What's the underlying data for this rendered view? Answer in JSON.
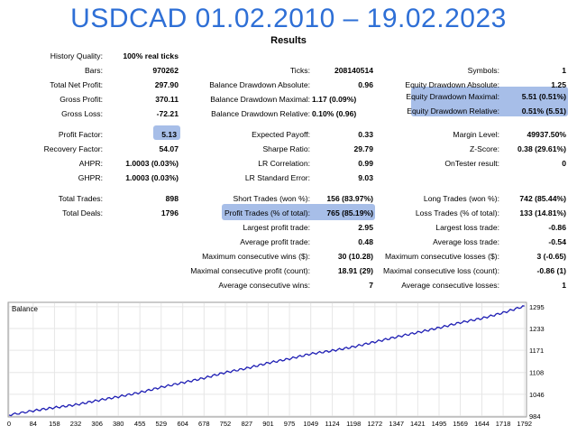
{
  "header": {
    "title": "USDCAD 01.02.2010 – 19.02.2023",
    "subtitle": "Results"
  },
  "stats": [
    {
      "label": "History Quality:",
      "value": "100% real ticks"
    },
    {
      "label": "Bars:",
      "value": "970262"
    },
    {
      "label": "Total Net Profit:",
      "value": "297.90"
    },
    {
      "label": "Gross Profit:",
      "value": "370.11"
    },
    {
      "label": "Gross Loss:",
      "value": "-72.21"
    },
    {
      "label": "Ticks:",
      "value": "208140514"
    },
    {
      "label": "Balance Drawdown Absolute:",
      "value": "0.96"
    },
    {
      "label": "Balance Drawdown Maximal:",
      "value": "1.17 (0.09%)"
    },
    {
      "label": "Balance Drawdown Relative:",
      "value": "0.10% (0.96)"
    },
    {
      "label": "Symbols:",
      "value": "1"
    },
    {
      "label": "Equity Drawdown Absolute:",
      "value": "1.25"
    },
    {
      "label": "Equity Drawdown Maximal:",
      "value": "5.51 (0.51%)"
    },
    {
      "label": "Equity Drawdown Relative:",
      "value": "0.51% (5.51)"
    },
    {
      "label": "Profit Factor:",
      "value": "5.13"
    },
    {
      "label": "Recovery Factor:",
      "value": "54.07"
    },
    {
      "label": "AHPR:",
      "value": "1.0003 (0.03%)"
    },
    {
      "label": "GHPR:",
      "value": "1.0003 (0.03%)"
    },
    {
      "label": "Expected Payoff:",
      "value": "0.33"
    },
    {
      "label": "Sharpe Ratio:",
      "value": "29.79"
    },
    {
      "label": "LR Correlation:",
      "value": "0.99"
    },
    {
      "label": "LR Standard Error:",
      "value": "9.03"
    },
    {
      "label": "Margin Level:",
      "value": "49937.50%"
    },
    {
      "label": "Z-Score:",
      "value": "0.38 (29.61%)"
    },
    {
      "label": "OnTester result:",
      "value": "0"
    },
    {
      "label": "Total Trades:",
      "value": "898"
    },
    {
      "label": "Total Deals:",
      "value": "1796"
    },
    {
      "label": "Short Trades (won %):",
      "value": "156 (83.97%)"
    },
    {
      "label": "Profit Trades (% of total):",
      "value": "765 (85.19%)"
    },
    {
      "label": "Largest profit trade:",
      "value": "2.95"
    },
    {
      "label": "Average profit trade:",
      "value": "0.48"
    },
    {
      "label": "Maximum consecutive wins ($):",
      "value": "30 (10.28)"
    },
    {
      "label": "Maximal consecutive profit (count):",
      "value": "18.91 (29)"
    },
    {
      "label": "Average consecutive wins:",
      "value": "7"
    },
    {
      "label": "Long Trades (won %):",
      "value": "742 (85.44%)"
    },
    {
      "label": "Loss Trades (% of total):",
      "value": "133 (14.81%)"
    },
    {
      "label": "Largest loss trade:",
      "value": "-0.86"
    },
    {
      "label": "Average loss trade:",
      "value": "-0.54"
    },
    {
      "label": "Maximum consecutive losses ($):",
      "value": "3 (-0.65)"
    },
    {
      "label": "Maximal consecutive loss (count):",
      "value": "-0.86 (1)"
    },
    {
      "label": "Average consecutive losses:",
      "value": "1"
    }
  ],
  "highlight_color": "#A7BEE8",
  "chart_data": {
    "type": "line",
    "legend": "Balance",
    "line_color": "#1F1FB4",
    "x_ticks": [
      "0",
      "84",
      "158",
      "232",
      "306",
      "380",
      "455",
      "529",
      "604",
      "678",
      "752",
      "827",
      "901",
      "975",
      "1049",
      "1124",
      "1198",
      "1272",
      "1347",
      "1421",
      "1495",
      "1569",
      "1644",
      "1718",
      "1792"
    ],
    "y_ticks": [
      "984",
      "1046",
      "1108",
      "1171",
      "1233",
      "1295"
    ],
    "xlim": [
      0,
      1796
    ],
    "ylim": [
      984,
      1305
    ],
    "x": [
      0,
      84,
      158,
      232,
      306,
      380,
      455,
      529,
      604,
      678,
      752,
      827,
      901,
      975,
      1049,
      1124,
      1198,
      1272,
      1347,
      1421,
      1495,
      1569,
      1644,
      1718,
      1792
    ],
    "y": [
      987,
      999,
      1008,
      1016,
      1028,
      1039,
      1051,
      1066,
      1079,
      1092,
      1108,
      1120,
      1135,
      1147,
      1161,
      1170,
      1181,
      1195,
      1209,
      1222,
      1235,
      1250,
      1262,
      1278,
      1297
    ]
  }
}
